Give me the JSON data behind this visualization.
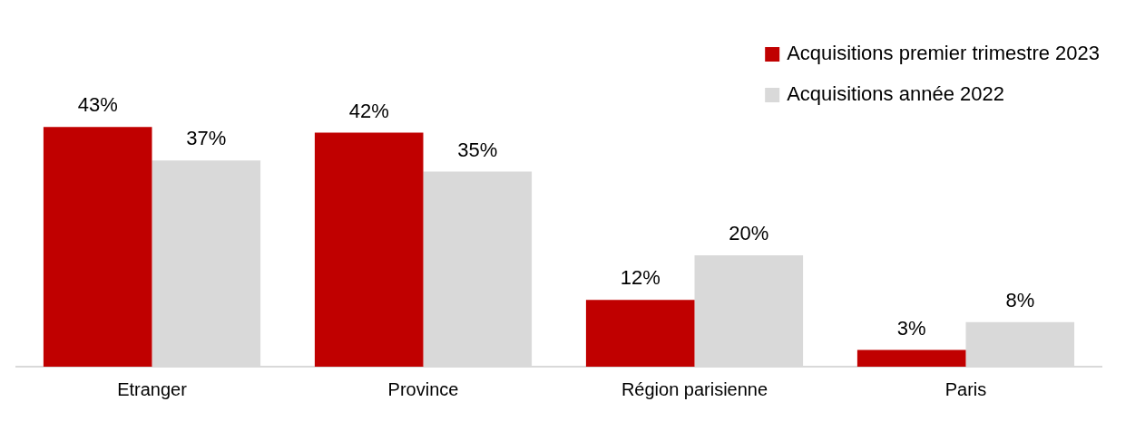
{
  "chart_data": {
    "type": "bar",
    "categories": [
      "Etranger",
      "Province",
      "Région parisienne",
      "Paris"
    ],
    "series": [
      {
        "name": "Acquisitions premier trimestre 2023",
        "color": "#c00000",
        "values": [
          43,
          42,
          12,
          3
        ],
        "value_labels": [
          "43%",
          "42%",
          "12%",
          "3%"
        ]
      },
      {
        "name": "Acquisitions année 2022",
        "color": "#d9d9d9",
        "values": [
          37,
          35,
          20,
          8
        ],
        "value_labels": [
          "37%",
          "35%",
          "20%",
          "8%"
        ]
      }
    ],
    "grid": false,
    "legend": "top right"
  }
}
